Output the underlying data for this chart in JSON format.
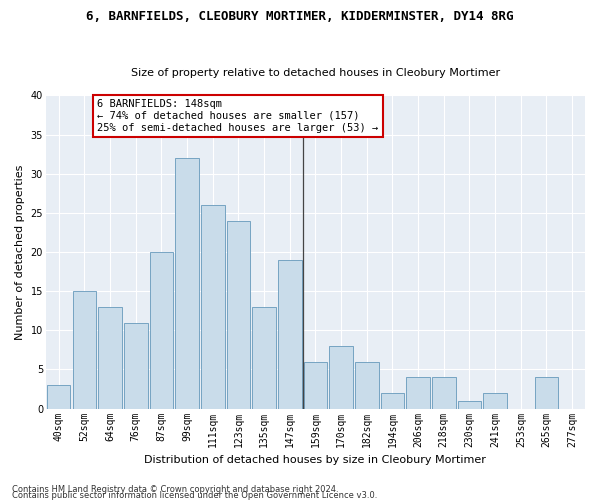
{
  "title": "6, BARNFIELDS, CLEOBURY MORTIMER, KIDDERMINSTER, DY14 8RG",
  "subtitle": "Size of property relative to detached houses in Cleobury Mortimer",
  "xlabel": "Distribution of detached houses by size in Cleobury Mortimer",
  "ylabel": "Number of detached properties",
  "categories": [
    "40sqm",
    "52sqm",
    "64sqm",
    "76sqm",
    "87sqm",
    "99sqm",
    "111sqm",
    "123sqm",
    "135sqm",
    "147sqm",
    "159sqm",
    "170sqm",
    "182sqm",
    "194sqm",
    "206sqm",
    "218sqm",
    "230sqm",
    "241sqm",
    "253sqm",
    "265sqm",
    "277sqm"
  ],
  "values": [
    3,
    15,
    13,
    11,
    20,
    32,
    26,
    24,
    13,
    19,
    6,
    8,
    6,
    2,
    4,
    4,
    1,
    2,
    0,
    4,
    0
  ],
  "bar_color": "#c9dcea",
  "bar_edge_color": "#6699bb",
  "vline_index": 9.5,
  "annotation_text": "6 BARNFIELDS: 148sqm\n← 74% of detached houses are smaller (157)\n25% of semi-detached houses are larger (53) →",
  "annotation_box_facecolor": "#ffffff",
  "annotation_box_edgecolor": "#cc0000",
  "ylim": [
    0,
    40
  ],
  "yticks": [
    0,
    5,
    10,
    15,
    20,
    25,
    30,
    35,
    40
  ],
  "background_color": "#e8eef5",
  "grid_color": "#ffffff",
  "footer1": "Contains HM Land Registry data © Crown copyright and database right 2024.",
  "footer2": "Contains public sector information licensed under the Open Government Licence v3.0.",
  "title_fontsize": 9,
  "subtitle_fontsize": 8,
  "ylabel_fontsize": 8,
  "xlabel_fontsize": 8,
  "tick_fontsize": 7,
  "annotation_fontsize": 7.5,
  "footer_fontsize": 6
}
